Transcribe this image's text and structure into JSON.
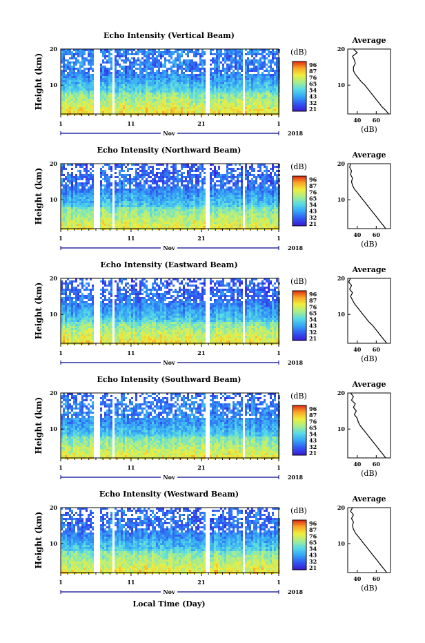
{
  "figure": {
    "xlabel": "Local Time (Day)",
    "month_label": "Nov",
    "year_label": "2018",
    "ylabel": "Height (km)",
    "colorbar_unit": "(dB)",
    "colorbar_ticks": [
      "96",
      "87",
      "76",
      "65",
      "54",
      "43",
      "32",
      "21"
    ],
    "colorbar_colors": [
      "#3a1ed8",
      "#2f5cf2",
      "#36a8f5",
      "#59dbe6",
      "#a9ee8a",
      "#f0ee3c",
      "#f8a326",
      "#e23414"
    ],
    "avg_title": "Average",
    "avg_xlabel": "(dB)",
    "avg_xticks": [
      "40",
      "60"
    ],
    "height_ticks": [
      "20",
      "10"
    ],
    "day_ticks": [
      "1",
      "11",
      "21",
      "1"
    ]
  },
  "chart_data": [
    {
      "type": "heatmap",
      "title": "Echo Intensity (Vertical Beam)",
      "xlabel": "",
      "ylabel": "Height (km)",
      "x_ticks": [
        "1",
        "11",
        "21",
        "1"
      ],
      "ylim": [
        2,
        20
      ],
      "clim": [
        21,
        96
      ],
      "color_levels": [
        21,
        32,
        43,
        54,
        65,
        76,
        87,
        96
      ],
      "average_profile": {
        "title": "Average",
        "xlabel": "(dB)",
        "xlim": [
          30,
          75
        ],
        "ylim": [
          2,
          20
        ],
        "height": [
          2,
          3,
          4,
          5,
          6,
          7,
          8,
          9,
          10,
          11,
          12,
          13,
          14,
          15,
          16,
          17,
          18,
          19,
          20
        ],
        "intensity": [
          73,
          70,
          66,
          63,
          60,
          57,
          54,
          51,
          48,
          44,
          41,
          38,
          36,
          36,
          38,
          37,
          35,
          40,
          36
        ]
      }
    },
    {
      "type": "heatmap",
      "title": "Echo Intensity (Northward Beam)",
      "xlabel": "",
      "ylabel": "Height (km)",
      "x_ticks": [
        "1",
        "11",
        "21",
        "1"
      ],
      "ylim": [
        2,
        20
      ],
      "clim": [
        21,
        96
      ],
      "color_levels": [
        21,
        32,
        43,
        54,
        65,
        76,
        87,
        96
      ],
      "average_profile": {
        "title": "Average",
        "xlabel": "(dB)",
        "xlim": [
          30,
          75
        ],
        "ylim": [
          2,
          20
        ],
        "height": [
          2,
          3,
          4,
          5,
          6,
          7,
          8,
          9,
          10,
          11,
          12,
          13,
          14,
          15,
          16,
          17,
          18,
          19,
          20
        ],
        "intensity": [
          70,
          67,
          64,
          61,
          58,
          55,
          52,
          49,
          46,
          43,
          40,
          37,
          35,
          34,
          35,
          33,
          34,
          32,
          33
        ]
      }
    },
    {
      "type": "heatmap",
      "title": "Echo Intensity (Eastward Beam)",
      "xlabel": "",
      "ylabel": "Height (km)",
      "x_ticks": [
        "1",
        "11",
        "21",
        "1"
      ],
      "ylim": [
        2,
        20
      ],
      "clim": [
        21,
        96
      ],
      "color_levels": [
        21,
        32,
        43,
        54,
        65,
        76,
        87,
        96
      ],
      "average_profile": {
        "title": "Average",
        "xlabel": "(dB)",
        "xlim": [
          30,
          75
        ],
        "ylim": [
          2,
          20
        ],
        "height": [
          2,
          3,
          4,
          5,
          6,
          7,
          8,
          9,
          10,
          11,
          12,
          13,
          14,
          15,
          16,
          17,
          18,
          19,
          20
        ],
        "intensity": [
          71,
          68,
          65,
          62,
          59,
          56,
          52,
          49,
          46,
          43,
          40,
          37,
          35,
          33,
          35,
          32,
          34,
          31,
          33
        ]
      }
    },
    {
      "type": "heatmap",
      "title": "Echo Intensity (Southward Beam)",
      "xlabel": "",
      "ylabel": "Height (km)",
      "x_ticks": [
        "1",
        "11",
        "21",
        "1"
      ],
      "ylim": [
        2,
        20
      ],
      "clim": [
        21,
        96
      ],
      "color_levels": [
        21,
        32,
        43,
        54,
        65,
        76,
        87,
        96
      ],
      "average_profile": {
        "title": "Average",
        "xlabel": "(dB)",
        "xlim": [
          30,
          75
        ],
        "ylim": [
          2,
          20
        ],
        "height": [
          2,
          3,
          4,
          5,
          6,
          7,
          8,
          9,
          10,
          11,
          12,
          13,
          14,
          15,
          16,
          17,
          18,
          19,
          20
        ],
        "intensity": [
          70,
          67,
          64,
          61,
          58,
          55,
          52,
          49,
          46,
          43,
          41,
          40,
          37,
          39,
          36,
          38,
          34,
          36,
          33
        ]
      }
    },
    {
      "type": "heatmap",
      "title": "Echo Intensity (Westward Beam)",
      "xlabel": "Local Time (Day)",
      "ylabel": "Height (km)",
      "x_ticks": [
        "1",
        "11",
        "21",
        "1"
      ],
      "ylim": [
        2,
        20
      ],
      "clim": [
        21,
        96
      ],
      "color_levels": [
        21,
        32,
        43,
        54,
        65,
        76,
        87,
        96
      ],
      "average_profile": {
        "title": "Average",
        "xlabel": "(dB)",
        "xlim": [
          30,
          75
        ],
        "ylim": [
          2,
          20
        ],
        "height": [
          2,
          3,
          4,
          5,
          6,
          7,
          8,
          9,
          10,
          11,
          12,
          13,
          14,
          15,
          16,
          17,
          18,
          19,
          20
        ],
        "intensity": [
          71,
          68,
          65,
          62,
          59,
          56,
          53,
          50,
          47,
          44,
          41,
          38,
          36,
          35,
          36,
          34,
          36,
          33,
          35
        ]
      }
    }
  ]
}
